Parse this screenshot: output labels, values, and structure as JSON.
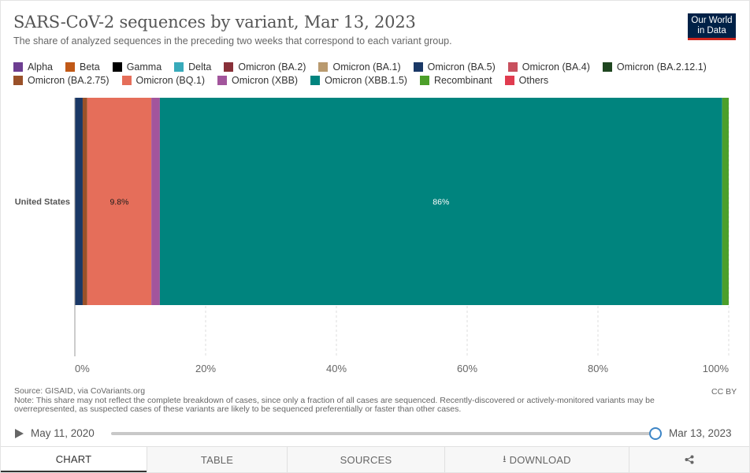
{
  "header": {
    "title": "SARS-CoV-2 sequences by variant, Mar 13, 2023",
    "subtitle": "The share of analyzed sequences in the preceding two weeks that correspond to each variant group.",
    "logo_line1": "Our World",
    "logo_line2": "in Data"
  },
  "legend": {
    "rows": [
      [
        {
          "label": "Alpha",
          "color": "#6d3e91"
        },
        {
          "label": "Beta",
          "color": "#c05917"
        },
        {
          "label": "Gamma",
          "color": "#000000"
        },
        {
          "label": "Delta",
          "color": "#38aaba"
        },
        {
          "label": "Omicron (BA.2)",
          "color": "#883039"
        },
        {
          "label": "Omicron (BA.1)",
          "color": "#b99a6f"
        },
        {
          "label": "Omicron (BA.5)",
          "color": "#1a3866"
        },
        {
          "label": "Omicron (BA.4)",
          "color": "#c8505e"
        },
        {
          "label": "Omicron (BA.2.12.1)",
          "color": "#1f4620"
        }
      ],
      [
        {
          "label": "Omicron (BA.2.75)",
          "color": "#9a5129"
        },
        {
          "label": "Omicron (BQ.1)",
          "color": "#e56e5a"
        },
        {
          "label": "Omicron (XBB)",
          "color": "#a2559c"
        },
        {
          "label": "Omicron (XBB.1.5)",
          "color": "#00847e"
        },
        {
          "label": "Recombinant",
          "color": "#4c9f2a"
        },
        {
          "label": "Others",
          "color": "#e03b4f"
        }
      ]
    ]
  },
  "chart_data": {
    "type": "bar",
    "orientation": "horizontal",
    "stacked": true,
    "title": "SARS-CoV-2 sequences by variant, Mar 13, 2023",
    "categories": [
      "United States"
    ],
    "series": [
      {
        "name": "Omicron (BA.5)",
        "color": "#1a3866",
        "values": [
          1.2
        ]
      },
      {
        "name": "Omicron (BA.2.75)",
        "color": "#9a5129",
        "values": [
          0.7
        ]
      },
      {
        "name": "Omicron (BQ.1)",
        "color": "#e56e5a",
        "values": [
          9.8
        ],
        "label": "9.8%"
      },
      {
        "name": "Omicron (XBB)",
        "color": "#a2559c",
        "values": [
          1.3
        ]
      },
      {
        "name": "Omicron (XBB.1.5)",
        "color": "#00847e",
        "values": [
          86
        ],
        "label": "86%"
      },
      {
        "name": "Recombinant",
        "color": "#4c9f2a",
        "values": [
          1.0
        ]
      }
    ],
    "x_ticks": [
      "0%",
      "20%",
      "40%",
      "60%",
      "80%",
      "100%"
    ],
    "x_tick_values": [
      0,
      20,
      40,
      60,
      80,
      100
    ],
    "xlim": [
      0,
      100
    ],
    "grid": true
  },
  "footer": {
    "source": "Source: GISAID, via CoVariants.org",
    "note": "Note: This share may not reflect the complete breakdown of cases, since only a fraction of all cases are sequenced. Recently-discovered or actively-monitored variants may be overrepresented, as suspected cases of these variants are likely to be sequenced preferentially or faster than other cases.",
    "license": "CC BY"
  },
  "timeline": {
    "start": "May 11, 2020",
    "end": "Mar 13, 2023"
  },
  "tabs": {
    "chart": "CHART",
    "table": "TABLE",
    "sources": "SOURCES",
    "download": "DOWNLOAD"
  }
}
